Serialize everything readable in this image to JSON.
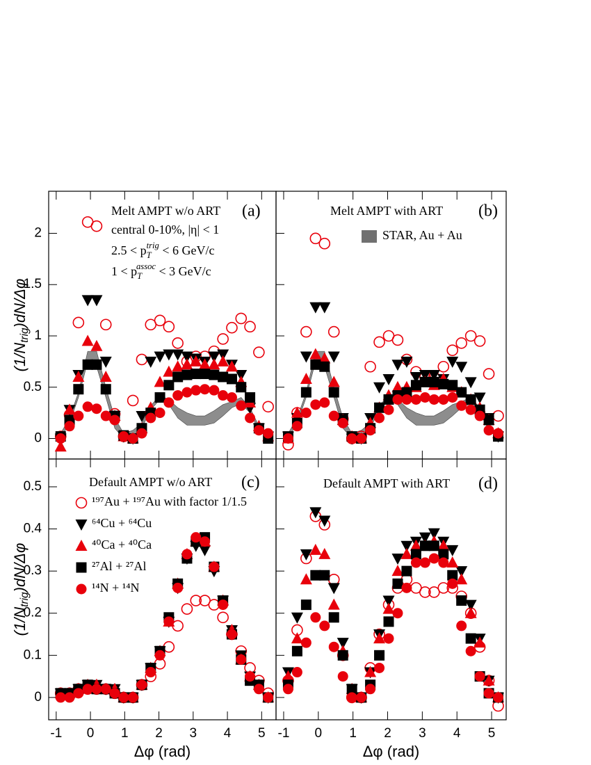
{
  "chart_data": [
    {
      "type": "scatter",
      "title": "Melt AMPT w/o ART",
      "label": "(a)",
      "notes": [
        [
          "central 0-10%, |η| < 1"
        ],
        [
          "2.5 < p",
          {
            "sub": "T",
            "sup": "trig"
          },
          " < 6 GeV/c"
        ],
        [
          "1 < p",
          {
            "sub": "T",
            "sup": "assoc"
          },
          " < 3 GeV/c"
        ]
      ],
      "ylabel": [
        "(1/N",
        {
          "sub": "trig"
        },
        ")dN/Δφ"
      ],
      "x": [
        -0.87,
        -0.61,
        -0.35,
        -0.08,
        0.18,
        0.45,
        0.71,
        0.97,
        1.24,
        1.5,
        1.76,
        2.03,
        2.29,
        2.55,
        2.82,
        3.08,
        3.34,
        3.61,
        3.87,
        4.13,
        4.4,
        4.66,
        4.92,
        5.19
      ],
      "band": {
        "color": "#707070",
        "low": [
          0,
          0.15,
          0.4,
          0.75,
          0.7,
          0.4,
          0.1,
          0,
          0.02,
          0.1,
          0.28,
          0.38,
          0.33,
          0.2,
          0.13,
          0.13,
          0.13,
          0.15,
          0.22,
          0.3,
          0.34,
          0.25,
          0.08,
          0
        ],
        "high": [
          0.05,
          0.2,
          0.45,
          0.85,
          0.85,
          0.5,
          0.2,
          0.05,
          0.08,
          0.15,
          0.32,
          0.42,
          0.38,
          0.3,
          0.25,
          0.22,
          0.22,
          0.27,
          0.33,
          0.36,
          0.4,
          0.3,
          0.12,
          0.05
        ]
      },
      "series": [
        {
          "color": "#e8000b",
          "marker": "circle-open",
          "values": [
            0.02,
            0.23,
            1.13,
            2.11,
            2.07,
            1.11,
            0.24,
            0.02,
            0.37,
            0.77,
            1.11,
            1.15,
            1.09,
            0.93,
            0.75,
            0.8,
            0.8,
            0.85,
            0.97,
            1.08,
            1.17,
            1.09,
            0.84,
            0.31
          ]
        },
        {
          "color": "#000000",
          "marker": "triangle-down",
          "values": [
            0.0,
            0.28,
            0.62,
            1.35,
            1.35,
            0.75,
            0.22,
            0.02,
            0.0,
            0.22,
            0.75,
            0.8,
            0.82,
            0.82,
            0.8,
            0.78,
            0.75,
            0.8,
            0.82,
            0.72,
            0.62,
            0.3,
            0.1,
            0.02
          ]
        },
        {
          "color": "#e8000b",
          "marker": "triangle-up",
          "values": [
            -0.08,
            0.28,
            0.6,
            0.95,
            0.9,
            0.6,
            0.22,
            0.02,
            0.0,
            0.1,
            0.3,
            0.55,
            0.65,
            0.7,
            0.72,
            0.75,
            0.72,
            0.72,
            0.75,
            0.7,
            0.55,
            0.35,
            0.12,
            0.02
          ]
        },
        {
          "color": "#000000",
          "marker": "square",
          "values": [
            0.02,
            0.18,
            0.48,
            0.72,
            0.72,
            0.48,
            0.22,
            0.03,
            0.0,
            0.1,
            0.25,
            0.4,
            0.52,
            0.6,
            0.62,
            0.63,
            0.63,
            0.62,
            0.6,
            0.58,
            0.5,
            0.4,
            0.1,
            0.0
          ]
        },
        {
          "color": "#e8000b",
          "marker": "circle",
          "values": [
            0.0,
            0.12,
            0.22,
            0.31,
            0.29,
            0.22,
            0.18,
            0.02,
            0.0,
            0.05,
            0.2,
            0.25,
            0.35,
            0.42,
            0.45,
            0.47,
            0.48,
            0.47,
            0.42,
            0.4,
            0.32,
            0.2,
            0.08,
            0.05
          ]
        }
      ],
      "xlim": [
        -1.22,
        5.42
      ],
      "ylim": [
        -0.2,
        2.41
      ],
      "xticks": [
        -1,
        0,
        1,
        2,
        3,
        4,
        5
      ],
      "yticks": [
        0,
        0.5,
        1,
        1.5,
        2
      ],
      "show_xtick_labels": false,
      "show_ytick_labels": true
    },
    {
      "type": "scatter",
      "title": "Melt AMPT with ART",
      "label": "(b)",
      "x": [
        -0.87,
        -0.61,
        -0.35,
        -0.08,
        0.18,
        0.45,
        0.71,
        0.97,
        1.24,
        1.5,
        1.76,
        2.03,
        2.29,
        2.55,
        2.82,
        3.08,
        3.34,
        3.61,
        3.87,
        4.13,
        4.4,
        4.66,
        4.92,
        5.19
      ],
      "band": {
        "name": "STAR, Au + Au",
        "color": "#707070",
        "low": [
          0,
          0.15,
          0.4,
          0.75,
          0.7,
          0.4,
          0.1,
          0,
          0.02,
          0.1,
          0.28,
          0.38,
          0.33,
          0.2,
          0.13,
          0.13,
          0.13,
          0.15,
          0.22,
          0.3,
          0.34,
          0.25,
          0.08,
          0
        ],
        "high": [
          0.05,
          0.2,
          0.45,
          0.85,
          0.85,
          0.5,
          0.2,
          0.05,
          0.08,
          0.15,
          0.32,
          0.42,
          0.38,
          0.3,
          0.25,
          0.22,
          0.22,
          0.27,
          0.33,
          0.36,
          0.4,
          0.3,
          0.12,
          0.05
        ]
      },
      "series": [
        {
          "color": "#e8000b",
          "marker": "circle-open",
          "values": [
            -0.06,
            0.25,
            1.04,
            1.95,
            1.9,
            1.04,
            0.19,
            0.0,
            0.02,
            0.7,
            0.94,
            1.0,
            0.96,
            0.77,
            0.65,
            0.6,
            0.6,
            0.7,
            0.86,
            0.93,
            1.0,
            0.95,
            0.63,
            0.22
          ]
        },
        {
          "color": "#000000",
          "marker": "triangle-down",
          "values": [
            0.02,
            0.2,
            0.8,
            1.28,
            1.28,
            0.8,
            0.2,
            0.0,
            0.0,
            0.2,
            0.5,
            0.58,
            0.72,
            0.75,
            0.6,
            0.62,
            0.62,
            0.58,
            0.75,
            0.7,
            0.55,
            0.4,
            0.2,
            0.02
          ]
        },
        {
          "color": "#e8000b",
          "marker": "triangle-up",
          "values": [
            0.0,
            0.25,
            0.58,
            0.82,
            0.78,
            0.55,
            0.18,
            0.02,
            0.0,
            0.15,
            0.3,
            0.42,
            0.5,
            0.5,
            0.5,
            0.55,
            0.52,
            0.58,
            0.5,
            0.45,
            0.38,
            0.3,
            0.18,
            0.05
          ]
        },
        {
          "color": "#000000",
          "marker": "square",
          "values": [
            0.02,
            0.15,
            0.45,
            0.72,
            0.7,
            0.45,
            0.18,
            0.02,
            0.0,
            0.1,
            0.3,
            0.38,
            0.42,
            0.45,
            0.52,
            0.55,
            0.55,
            0.53,
            0.52,
            0.45,
            0.38,
            0.28,
            0.18,
            0.02
          ]
        },
        {
          "color": "#e8000b",
          "marker": "circle",
          "values": [
            0.0,
            0.12,
            0.25,
            0.33,
            0.35,
            0.22,
            0.15,
            0.0,
            0.0,
            0.08,
            0.2,
            0.28,
            0.38,
            0.38,
            0.38,
            0.4,
            0.38,
            0.38,
            0.4,
            0.32,
            0.28,
            0.22,
            0.08,
            0.05
          ]
        }
      ],
      "xlim": [
        -1.22,
        5.42
      ],
      "ylim": [
        -0.2,
        2.41
      ],
      "xticks": [
        -1,
        0,
        1,
        2,
        3,
        4,
        5
      ],
      "yticks": [
        0,
        0.5,
        1,
        1.5,
        2
      ],
      "show_xtick_labels": false,
      "show_ytick_labels": false
    },
    {
      "type": "scatter",
      "title": "Default AMPT w/o ART",
      "label": "(c)",
      "ylabel": [
        "(1/N",
        {
          "sub": "trig"
        },
        ")dN/Δφ"
      ],
      "xlabel": "Δφ (rad)",
      "x": [
        -0.87,
        -0.61,
        -0.35,
        -0.08,
        0.18,
        0.45,
        0.71,
        0.97,
        1.24,
        1.5,
        1.76,
        2.03,
        2.29,
        2.55,
        2.82,
        3.08,
        3.34,
        3.61,
        3.87,
        4.13,
        4.4,
        4.66,
        4.92,
        5.19
      ],
      "series": [
        {
          "name": "¹⁹⁷Au + ¹⁹⁷Au with factor 1/1.5",
          "color": "#e8000b",
          "marker": "circle-open",
          "values": [
            0.01,
            0.01,
            0.02,
            0.02,
            0.02,
            0.02,
            0.01,
            0.0,
            0.0,
            0.03,
            0.05,
            0.08,
            0.12,
            0.17,
            0.21,
            0.23,
            0.23,
            0.22,
            0.19,
            0.15,
            0.11,
            0.07,
            0.04,
            0.01
          ]
        },
        {
          "name": "⁶⁴Cu + ⁶⁴Cu",
          "color": "#000000",
          "marker": "triangle-down",
          "values": [
            0.01,
            0.01,
            0.02,
            0.03,
            0.03,
            0.02,
            0.02,
            0.0,
            0.0,
            0.03,
            0.07,
            0.11,
            0.18,
            0.26,
            0.33,
            0.36,
            0.35,
            0.3,
            0.23,
            0.16,
            0.1,
            0.05,
            0.03,
            0.0
          ]
        },
        {
          "name": "⁴⁰Ca + ⁴⁰Ca",
          "color": "#e8000b",
          "marker": "triangle-up",
          "values": [
            0.01,
            0.01,
            0.02,
            0.03,
            0.03,
            0.02,
            0.02,
            0.0,
            0.0,
            0.03,
            0.07,
            0.11,
            0.18,
            0.27,
            0.34,
            0.37,
            0.37,
            0.31,
            0.23,
            0.16,
            0.09,
            0.05,
            0.03,
            0.0
          ]
        },
        {
          "name": "²⁷Al + ²⁷Al",
          "color": "#000000",
          "marker": "square",
          "values": [
            0.01,
            0.01,
            0.02,
            0.03,
            0.02,
            0.02,
            0.01,
            0.0,
            0.0,
            0.03,
            0.07,
            0.11,
            0.19,
            0.27,
            0.33,
            0.37,
            0.38,
            0.31,
            0.23,
            0.15,
            0.09,
            0.04,
            0.03,
            0.0
          ]
        },
        {
          "name": "¹⁴N + ¹⁴N",
          "color": "#e8000b",
          "marker": "circle",
          "values": [
            0.0,
            0.0,
            0.01,
            0.02,
            0.02,
            0.02,
            0.01,
            0.0,
            0.0,
            0.03,
            0.06,
            0.1,
            0.18,
            0.26,
            0.34,
            0.38,
            0.37,
            0.31,
            0.22,
            0.15,
            0.09,
            0.05,
            0.02,
            0.0
          ]
        }
      ],
      "xlim": [
        -1.22,
        5.42
      ],
      "ylim": [
        -0.053,
        0.566
      ],
      "xticks": [
        -1,
        0,
        1,
        2,
        3,
        4,
        5
      ],
      "yticks": [
        0,
        0.1,
        0.2,
        0.3,
        0.4,
        0.5
      ],
      "show_xtick_labels": true,
      "show_ytick_labels": true
    },
    {
      "type": "scatter",
      "title": "Default AMPT with ART",
      "label": "(d)",
      "xlabel": "Δφ (rad)",
      "x": [
        -0.87,
        -0.61,
        -0.35,
        -0.08,
        0.18,
        0.45,
        0.71,
        0.97,
        1.24,
        1.5,
        1.76,
        2.03,
        2.29,
        2.55,
        2.82,
        3.08,
        3.34,
        3.61,
        3.87,
        4.13,
        4.4,
        4.66,
        4.92,
        5.19
      ],
      "series": [
        {
          "color": "#e8000b",
          "marker": "circle-open",
          "values": [
            0.04,
            0.16,
            0.33,
            0.43,
            0.41,
            0.28,
            0.1,
            0.0,
            0.0,
            0.07,
            0.15,
            0.22,
            0.26,
            0.28,
            0.26,
            0.25,
            0.25,
            0.26,
            0.26,
            0.24,
            0.2,
            0.12,
            0.04,
            -0.02
          ]
        },
        {
          "color": "#000000",
          "marker": "triangle-down",
          "values": [
            0.06,
            0.19,
            0.34,
            0.44,
            0.42,
            0.26,
            0.13,
            0.02,
            0.0,
            0.06,
            0.15,
            0.23,
            0.33,
            0.36,
            0.37,
            0.38,
            0.39,
            0.37,
            0.35,
            0.3,
            0.22,
            0.14,
            0.04,
            0.0
          ]
        },
        {
          "color": "#e8000b",
          "marker": "triangle-up",
          "values": [
            0.05,
            0.14,
            0.28,
            0.35,
            0.34,
            0.22,
            0.11,
            0.02,
            0.0,
            0.06,
            0.14,
            0.21,
            0.3,
            0.34,
            0.36,
            0.36,
            0.37,
            0.36,
            0.32,
            0.28,
            0.2,
            0.13,
            0.04,
            0.0
          ]
        },
        {
          "color": "#000000",
          "marker": "square",
          "values": [
            0.03,
            0.11,
            0.22,
            0.29,
            0.29,
            0.19,
            0.1,
            0.02,
            0.0,
            0.03,
            0.1,
            0.18,
            0.27,
            0.3,
            0.34,
            0.36,
            0.36,
            0.34,
            0.29,
            0.23,
            0.14,
            0.05,
            0.01,
            0.0
          ]
        },
        {
          "color": "#e8000b",
          "marker": "circle",
          "values": [
            0.02,
            0.06,
            0.13,
            0.19,
            0.17,
            0.12,
            0.05,
            0.0,
            0.0,
            0.02,
            0.07,
            0.14,
            0.2,
            0.26,
            0.32,
            0.32,
            0.33,
            0.32,
            0.27,
            0.17,
            0.11,
            0.05,
            0.01,
            0.0
          ]
        }
      ],
      "xlim": [
        -1.22,
        5.42
      ],
      "ylim": [
        -0.053,
        0.566
      ],
      "xticks": [
        -1,
        0,
        1,
        2,
        3,
        4,
        5
      ],
      "yticks": [
        0,
        0.1,
        0.2,
        0.3,
        0.4,
        0.5
      ],
      "show_xtick_labels": true,
      "show_ytick_labels": false
    }
  ]
}
